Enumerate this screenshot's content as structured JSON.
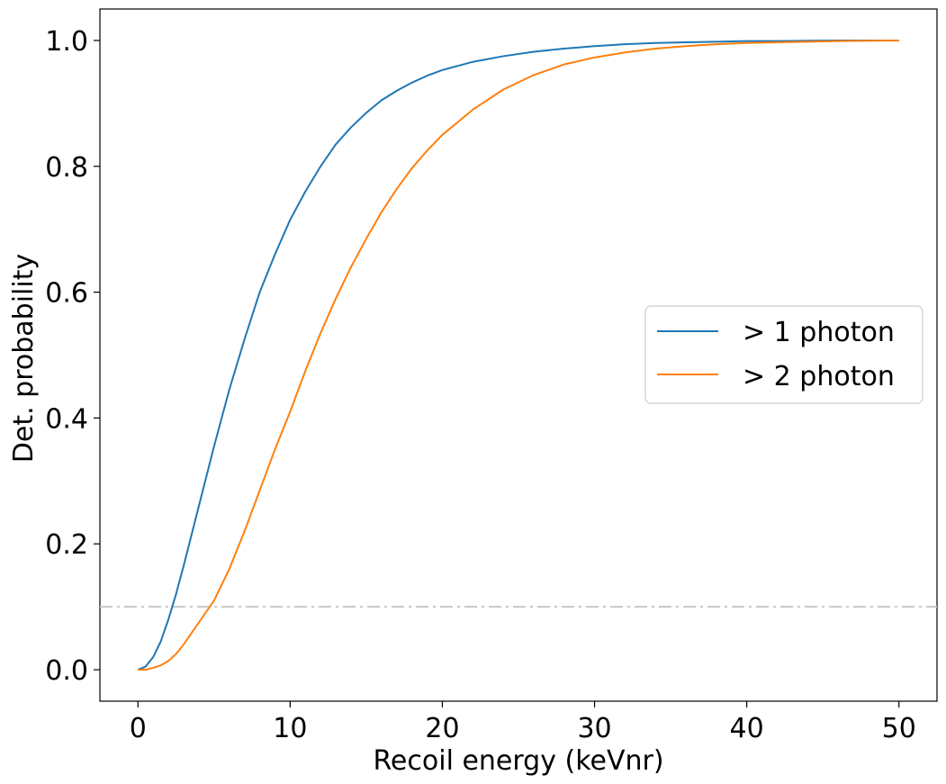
{
  "chart_data": {
    "type": "line",
    "title": "",
    "xlabel": "Recoil energy (keVnr)",
    "ylabel": "Det. probability",
    "xlim": [
      -2.5,
      52.5
    ],
    "ylim": [
      -0.05,
      1.05
    ],
    "xticks": [
      0,
      10,
      20,
      30,
      40,
      50
    ],
    "xtick_labels": [
      "0",
      "10",
      "20",
      "30",
      "40",
      "50"
    ],
    "yticks": [
      0.0,
      0.2,
      0.4,
      0.6,
      0.8,
      1.0
    ],
    "ytick_labels": [
      "0.0",
      "0.2",
      "0.4",
      "0.6",
      "0.8",
      "1.0"
    ],
    "grid": false,
    "legend_position": "center-right",
    "x": [
      0,
      0.5,
      1,
      1.5,
      2,
      2.5,
      3,
      4,
      5,
      6,
      7,
      8,
      9,
      10,
      11,
      12,
      13,
      14,
      15,
      16,
      17,
      18,
      19,
      20,
      22,
      24,
      26,
      28,
      30,
      32,
      34,
      36,
      38,
      40,
      42,
      44,
      46,
      48,
      50
    ],
    "series": [
      {
        "name": "> 1 photon",
        "color": "#1f77b4",
        "values": [
          0.0,
          0.005,
          0.02,
          0.045,
          0.08,
          0.12,
          0.165,
          0.26,
          0.355,
          0.445,
          0.525,
          0.6,
          0.66,
          0.715,
          0.76,
          0.8,
          0.835,
          0.862,
          0.885,
          0.905,
          0.92,
          0.933,
          0.944,
          0.953,
          0.966,
          0.975,
          0.982,
          0.987,
          0.991,
          0.994,
          0.996,
          0.997,
          0.998,
          0.999,
          0.999,
          0.9995,
          1.0,
          1.0,
          1.0
        ]
      },
      {
        "name": "> 2 photon",
        "color": "#ff7f0e",
        "values": [
          0.0,
          0.0,
          0.003,
          0.007,
          0.014,
          0.025,
          0.04,
          0.075,
          0.11,
          0.16,
          0.22,
          0.285,
          0.35,
          0.41,
          0.475,
          0.535,
          0.59,
          0.64,
          0.685,
          0.727,
          0.764,
          0.797,
          0.825,
          0.85,
          0.89,
          0.922,
          0.945,
          0.962,
          0.973,
          0.981,
          0.987,
          0.991,
          0.994,
          0.996,
          0.997,
          0.998,
          0.999,
          0.9995,
          1.0
        ]
      }
    ],
    "reference_lines": [
      {
        "axis": "y",
        "value": 0.1,
        "style": "dashdot",
        "color": "#c8c8c8"
      }
    ]
  }
}
